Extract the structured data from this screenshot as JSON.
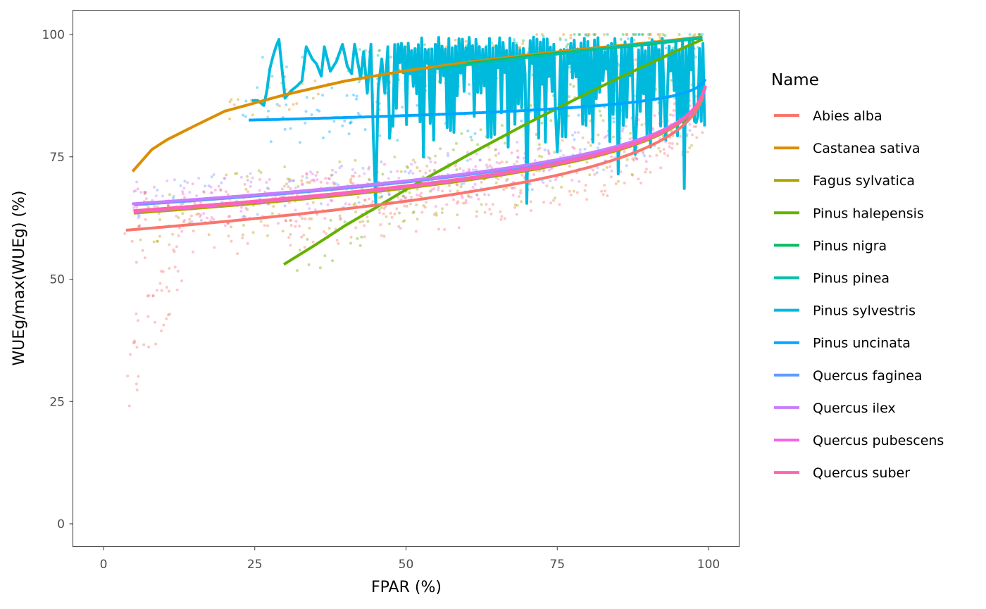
{
  "chart_data": {
    "type": "line",
    "xlabel": "FPAR (%)",
    "ylabel": "WUEg/max(WUEg) (%)",
    "xlim": [
      -5,
      105
    ],
    "ylim": [
      -5,
      105
    ],
    "x_ticks": [
      0,
      25,
      50,
      75,
      100
    ],
    "y_ticks": [
      0,
      25,
      50,
      75,
      100
    ],
    "grid": false,
    "legend": {
      "title": "Name",
      "position": "right"
    },
    "series": [
      {
        "name": "Abies alba",
        "color": "#F8766D",
        "fit": {
          "x0": 3.7,
          "y0": 60,
          "p": 0.245
        },
        "points": {
          "n": 260,
          "xmin": 3.5,
          "xmax": 99,
          "noise": 7
        }
      },
      {
        "name": "Castanea sativa",
        "color": "#DB8E00",
        "line": {
          "x": [
            4.8,
            8,
            10.5,
            15,
            20,
            30,
            40,
            50,
            60,
            70,
            80,
            90,
            99
          ],
          "y": [
            72,
            76.5,
            78.5,
            81.3,
            84.3,
            87.7,
            90.5,
            92.6,
            94.3,
            95.8,
            97.1,
            98.3,
            99.5
          ]
        },
        "points": {
          "n": 120,
          "xmin": 20,
          "xmax": 99,
          "noise": 5
        }
      },
      {
        "name": "Fagus sylvatica",
        "color": "#AEA200",
        "fit": {
          "x0": 5,
          "y0": 63.5,
          "p": 0.235
        },
        "points": {
          "n": 190,
          "xmin": 5,
          "xmax": 99,
          "noise": 7
        }
      },
      {
        "name": "Pinus halepensis",
        "color": "#64B200",
        "line": {
          "x": [
            29.8,
            35,
            40,
            45,
            50,
            55,
            60,
            65,
            70,
            75,
            80,
            85,
            90,
            95,
            99
          ],
          "y": [
            53,
            57,
            61,
            64.6,
            68.3,
            71.8,
            75.2,
            78.5,
            81.8,
            84.9,
            88,
            91,
            93.9,
            96.8,
            99
          ]
        },
        "points": {
          "n": 90,
          "xmin": 30,
          "xmax": 99,
          "noise": 6
        }
      },
      {
        "name": "Pinus nigra",
        "color": "#00BD5C",
        "line": {
          "x": [
            60,
            70,
            80,
            90,
            99
          ],
          "y": [
            94,
            95.5,
            96.8,
            98,
            99.3
          ]
        },
        "points": {
          "n": 70,
          "xmin": 45,
          "xmax": 99,
          "noise": 4
        }
      },
      {
        "name": "Pinus pinea",
        "color": "#00C1A7",
        "line": {
          "x": [
            55,
            65,
            75,
            85,
            95,
            99
          ],
          "y": [
            93,
            94.6,
            96,
            97.5,
            98.8,
            99.4
          ]
        },
        "points": {
          "n": 70,
          "xmin": 40,
          "xmax": 99,
          "noise": 4
        }
      },
      {
        "name": "Pinus sylvestris",
        "color": "#00BADE",
        "noisy": {
          "x": [
            24.5,
            25.5,
            26.5,
            27,
            27.5,
            28,
            28.5,
            29,
            30,
            31,
            32,
            32.8,
            33.5,
            34.5,
            35.2,
            36,
            36.5,
            37.5,
            38.5,
            39.5,
            40.3,
            41,
            41.5,
            42.5,
            43,
            43.6,
            44.2,
            44.6,
            45,
            45.4,
            46,
            46.5,
            47
          ],
          "y": [
            86.5,
            86.5,
            85.5,
            88.5,
            93,
            95.5,
            97.5,
            99,
            87,
            88.5,
            89.5,
            90.5,
            97.5,
            95,
            94,
            91.5,
            97.5,
            92.5,
            94.5,
            98,
            93.5,
            92,
            98,
            91,
            96.5,
            88,
            98,
            79,
            65.5,
            89,
            95,
            88,
            97.5
          ],
          "start": 47,
          "end": 99.5,
          "step": 0.28,
          "lo": 78,
          "hi": 99.5,
          "dips": [
            [
              47.5,
              83
            ],
            [
              53,
              75
            ],
            [
              58,
              80
            ],
            [
              64,
              79
            ],
            [
              67,
              77
            ],
            [
              70,
              65.5
            ],
            [
              73,
              78
            ],
            [
              75,
              76
            ],
            [
              81,
              78
            ],
            [
              85,
              71.5
            ],
            [
              88,
              75.5
            ],
            [
              90.5,
              77
            ],
            [
              93,
              78.5
            ],
            [
              96,
              68.5
            ],
            [
              98,
              82
            ]
          ]
        },
        "points": {
          "n": 70,
          "xmin": 25,
          "xmax": 99,
          "noise": 5
        }
      },
      {
        "name": "Pinus uncinata",
        "color": "#00A6FF",
        "fit": {
          "x0": 24,
          "y0": 82.5,
          "p": 0.13
        },
        "points": {
          "n": 70,
          "xmin": 22,
          "xmax": 99,
          "noise": 5
        }
      },
      {
        "name": "Quercus faginea",
        "color": "#619CFF",
        "fit": {
          "x0": 5,
          "y0": 65.2,
          "p": 0.223
        },
        "points": {
          "n": 110,
          "xmin": 5,
          "xmax": 99,
          "noise": 5
        }
      },
      {
        "name": "Quercus ilex",
        "color": "#C77CFF",
        "fit": {
          "x0": 4.7,
          "y0": 65.4,
          "p": 0.226
        },
        "points": {
          "n": 110,
          "xmin": 5,
          "xmax": 99,
          "noise": 5
        }
      },
      {
        "name": "Quercus pubescens",
        "color": "#F564E3",
        "fit": {
          "x0": 5,
          "y0": 63.8,
          "p": 0.236
        },
        "points": {
          "n": 110,
          "xmin": 5,
          "xmax": 99,
          "noise": 5
        }
      },
      {
        "name": "Quercus suber",
        "color": "#FF64B0",
        "fit": {
          "x0": 5,
          "y0": 64,
          "p": 0.236
        },
        "points": {
          "n": 110,
          "xmin": 5,
          "xmax": 99,
          "noise": 5
        }
      }
    ]
  }
}
